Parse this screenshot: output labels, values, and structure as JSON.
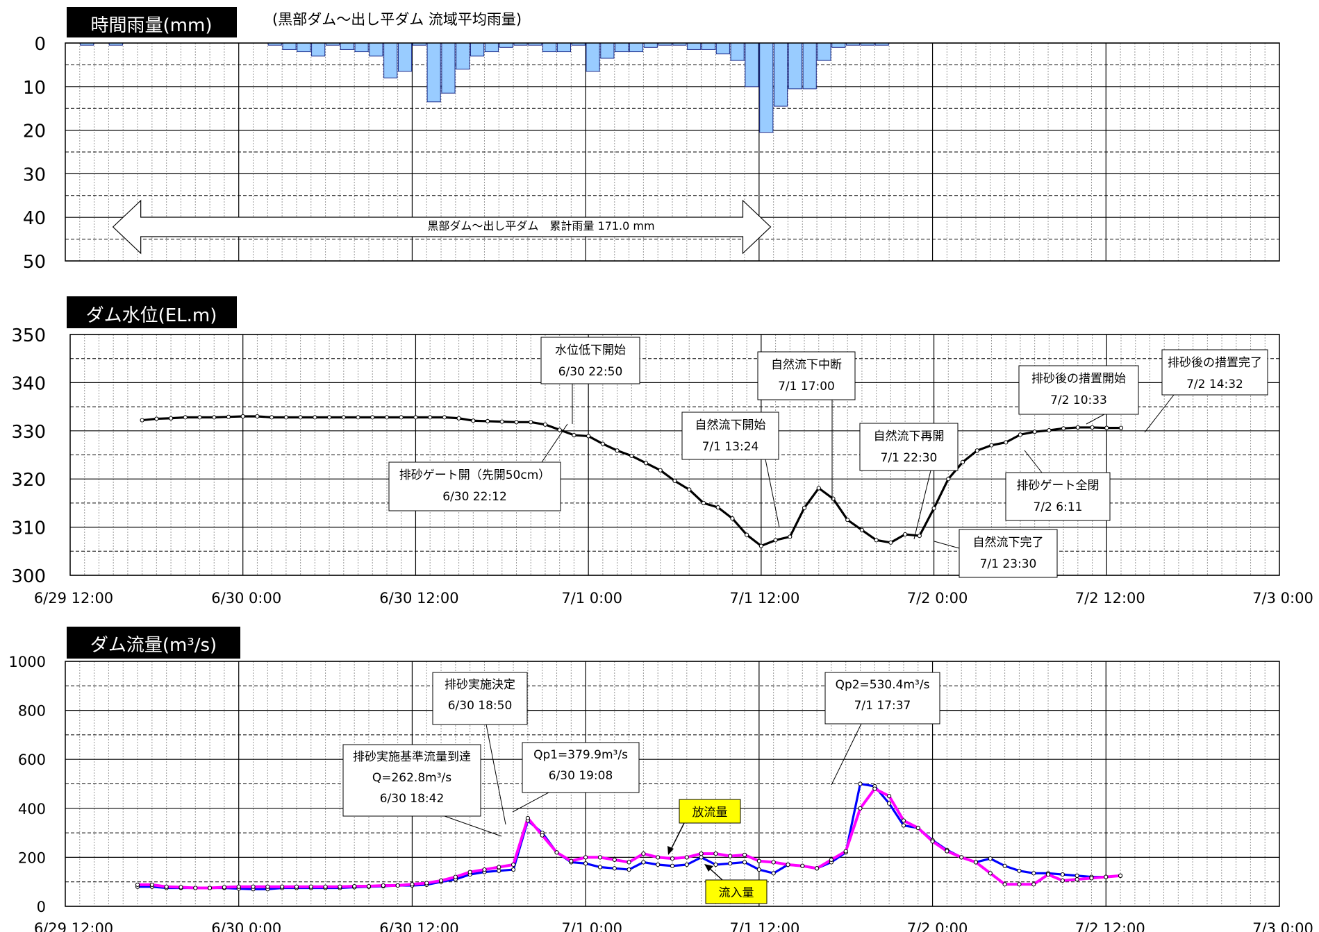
{
  "chart_data": [
    {
      "type": "bar",
      "title": "時間雨量(mm)",
      "subtitle": "(黒部ダム～出し平ダム 流域平均雨量)",
      "ylim": [
        0,
        50
      ],
      "y_inverted": true,
      "y_ticks": [
        "0",
        "10",
        "20",
        "30",
        "40",
        "50"
      ],
      "x_range_hours": [
        0,
        84
      ],
      "x": [
        1.5,
        3.5,
        14.5,
        15.5,
        16.5,
        17.5,
        18.5,
        19.5,
        20.5,
        21.5,
        22.5,
        23.5,
        24.5,
        25.5,
        26.5,
        27.5,
        28.5,
        29.5,
        30.5,
        31.5,
        32.5,
        33.5,
        34.5,
        35.5,
        36.5,
        37.5,
        38.5,
        39.5,
        40.5,
        41.5,
        42.5,
        43.5,
        44.5,
        45.5,
        46.5,
        47.5,
        48.5,
        49.5,
        50.5,
        51.5,
        52.5,
        53.5,
        54.5,
        55.5,
        56.5
      ],
      "values": [
        0.5,
        0.5,
        0.5,
        1.5,
        2.0,
        3.0,
        0.5,
        1.5,
        2.0,
        3.0,
        8.0,
        6.5,
        0.5,
        13.5,
        11.5,
        6.0,
        3.0,
        2.0,
        1.0,
        0.5,
        0.5,
        2.0,
        2.0,
        0.5,
        6.5,
        3.5,
        2.0,
        2.0,
        1.0,
        0.5,
        0.5,
        1.5,
        1.5,
        2.5,
        4.0,
        10.0,
        20.5,
        14.5,
        10.5,
        10.5,
        4.0,
        1.0,
        0.5,
        0.5,
        0.5
      ],
      "bar_color": "#99ccff",
      "annotation": "黒部ダム～出し平ダム　累計雨量 171.0 mm",
      "annotation_range_hours": [
        3.3,
        48.8
      ]
    },
    {
      "type": "line",
      "title": "ダム水位(EL.m)",
      "ylim": [
        300,
        350
      ],
      "y_ticks": [
        "350",
        "340",
        "330",
        "320",
        "310",
        "300"
      ],
      "x_tick_labels": [
        "6/29 12:00",
        "6/30 0:00",
        "6/30 12:00",
        "7/1 0:00",
        "7/1 12:00",
        "7/2 0:00",
        "7/2 12:00",
        "7/3 0:00"
      ],
      "x_range_hours": [
        0,
        84
      ],
      "series": [
        {
          "x": [
            5,
            6,
            7,
            8,
            9,
            10,
            11,
            12,
            13,
            14,
            15,
            16,
            17,
            18,
            19,
            20,
            21,
            22,
            23,
            24,
            25,
            26,
            27,
            28,
            29,
            30,
            31,
            32,
            33,
            34,
            35,
            36,
            37,
            38,
            39,
            40,
            41,
            42,
            43,
            44,
            45,
            46,
            47,
            48,
            49,
            50,
            51,
            52,
            53,
            54,
            55,
            56,
            57,
            58,
            59,
            60,
            61,
            62,
            63,
            64,
            65,
            66,
            67,
            68,
            69,
            70,
            71,
            72,
            73
          ],
          "values": [
            332.2,
            332.5,
            332.6,
            332.8,
            332.8,
            332.8,
            332.9,
            333.0,
            333.0,
            332.8,
            332.8,
            332.8,
            332.8,
            332.8,
            332.8,
            332.8,
            332.8,
            332.8,
            332.8,
            332.8,
            332.8,
            332.8,
            332.6,
            332.1,
            332.0,
            331.9,
            331.8,
            331.8,
            331.3,
            330.2,
            329.1,
            328.9,
            327.3,
            325.9,
            324.8,
            323.3,
            321.8,
            319.6,
            317.8,
            315.0,
            314.1,
            311.8,
            308.4,
            306.1,
            307.3,
            308.0,
            314.0,
            318.1,
            315.9,
            311.5,
            309.4,
            307.3,
            306.8,
            308.5,
            308.2,
            313.9,
            320.0,
            323.5,
            325.9,
            327.0,
            327.6,
            329.2,
            329.8,
            330.1,
            330.5,
            330.7,
            330.7,
            330.6,
            330.6
          ],
          "color": "#000000"
        }
      ],
      "annotations": [
        {
          "lines": [
            "水位低下開始",
            "6/30 22:50"
          ]
        },
        {
          "lines": [
            "排砂ゲート開（先開50cm）",
            "6/30 22:12"
          ]
        },
        {
          "lines": [
            "自然流下開始",
            "7/1 13:24"
          ]
        },
        {
          "lines": [
            "自然流下中断",
            "7/1 17:00"
          ]
        },
        {
          "lines": [
            "自然流下再開",
            "7/1 22:30"
          ]
        },
        {
          "lines": [
            "自然流下完了",
            "7/1 23:30"
          ]
        },
        {
          "lines": [
            "排砂後の措置開始",
            "7/2 10:33"
          ]
        },
        {
          "lines": [
            "排砂ゲート全閉",
            "7/2 6:11"
          ]
        },
        {
          "lines": [
            "排砂後の措置完了",
            "7/2 14:32"
          ]
        }
      ]
    },
    {
      "type": "line",
      "title": "ダム流量(m³/s)",
      "ylim": [
        0,
        1000
      ],
      "y_ticks": [
        "1000",
        "800",
        "600",
        "400",
        "200",
        "0"
      ],
      "x_tick_labels": [
        "6/29 12:00",
        "6/30 0:00",
        "6/30 12:00",
        "7/1 0:00",
        "7/1 12:00",
        "7/2 0:00",
        "7/2 12:00",
        "7/3 0:00"
      ],
      "x_range_hours": [
        0,
        84
      ],
      "series": [
        {
          "name": "流入量",
          "color": "#0000ff",
          "x": [
            5,
            6,
            7,
            8,
            9,
            10,
            11,
            12,
            13,
            14,
            15,
            16,
            17,
            18,
            19,
            20,
            21,
            22,
            23,
            24,
            25,
            26,
            27,
            28,
            29,
            30,
            31,
            32,
            33,
            34,
            35,
            36,
            37,
            38,
            39,
            40,
            41,
            42,
            43,
            44,
            45,
            46,
            47,
            48,
            49,
            50,
            51,
            52,
            53,
            54,
            55,
            56,
            57,
            58,
            59,
            60,
            61,
            62,
            63,
            64,
            65,
            66,
            67,
            68,
            69,
            70,
            71,
            72,
            73
          ],
          "values": [
            80,
            80,
            75,
            75,
            75,
            75,
            75,
            72,
            70,
            70,
            75,
            75,
            75,
            75,
            75,
            78,
            80,
            82,
            85,
            85,
            88,
            100,
            110,
            130,
            140,
            145,
            150,
            350,
            300,
            220,
            180,
            175,
            160,
            155,
            150,
            180,
            170,
            165,
            170,
            200,
            170,
            175,
            180,
            150,
            135,
            170,
            165,
            155,
            180,
            220,
            500,
            490,
            420,
            330,
            320,
            270,
            230,
            200,
            180,
            195,
            165,
            145,
            135,
            135,
            130,
            125,
            120,
            120,
            125
          ]
        },
        {
          "name": "放流量",
          "color": "#ff00ff",
          "x": [
            5,
            6,
            7,
            8,
            9,
            10,
            11,
            12,
            13,
            14,
            15,
            16,
            17,
            18,
            19,
            20,
            21,
            22,
            23,
            24,
            25,
            26,
            27,
            28,
            29,
            30,
            31,
            32,
            33,
            34,
            35,
            36,
            37,
            38,
            39,
            40,
            41,
            42,
            43,
            44,
            45,
            46,
            47,
            48,
            49,
            50,
            51,
            52,
            53,
            54,
            55,
            56,
            57,
            58,
            59,
            60,
            61,
            62,
            63,
            64,
            65,
            66,
            67,
            68,
            69,
            70,
            71,
            72,
            73
          ],
          "values": [
            88,
            88,
            80,
            78,
            75,
            75,
            78,
            80,
            80,
            80,
            80,
            80,
            80,
            80,
            80,
            82,
            82,
            85,
            85,
            90,
            95,
            105,
            120,
            140,
            150,
            160,
            170,
            360,
            290,
            220,
            185,
            200,
            200,
            190,
            180,
            215,
            200,
            195,
            200,
            215,
            215,
            205,
            210,
            185,
            180,
            170,
            165,
            155,
            190,
            225,
            400,
            480,
            450,
            350,
            320,
            265,
            225,
            200,
            180,
            135,
            90,
            90,
            90,
            130,
            105,
            110,
            115,
            120,
            125
          ]
        }
      ],
      "annotations": [
        {
          "lines": [
            "排砂実施決定",
            "6/30  18:50"
          ]
        },
        {
          "lines": [
            "排砂実施基準流量到達",
            "Q=262.8m³/s",
            "6/30  18:42"
          ]
        },
        {
          "lines": [
            "Qp1=379.9m³/s",
            "6/30  19:08"
          ]
        },
        {
          "lines": [
            "Qp2=530.4m³/s",
            "7/1  17:37"
          ]
        }
      ],
      "legend_labels": {
        "outflow": "放流量",
        "inflow": "流入量"
      },
      "legend_color": "#ffff00"
    }
  ]
}
